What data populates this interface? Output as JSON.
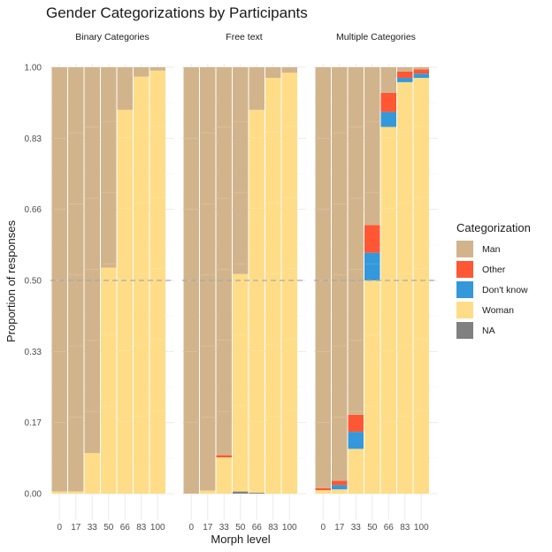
{
  "chart_data": {
    "type": "bar",
    "stacked": true,
    "title": "Gender Categorizations by Participants",
    "xlabel": "Morph level",
    "ylabel": "Proportion of responses",
    "ylim": [
      0,
      1
    ],
    "yticks": [
      "0.00",
      "0.17",
      "0.33",
      "0.50",
      "0.66",
      "0.83",
      "1.00"
    ],
    "ytick_values": [
      0,
      0.1667,
      0.3333,
      0.5,
      0.6667,
      0.8333,
      1.0
    ],
    "reference_line": 0.5,
    "categories": [
      "0",
      "17",
      "33",
      "50",
      "66",
      "83",
      "100"
    ],
    "legend": {
      "title": "Categorization",
      "position": "right",
      "entries": [
        {
          "key": "man",
          "label": "Man",
          "color": "#D2B48C"
        },
        {
          "key": "other",
          "label": "Other",
          "color": "#FF5733"
        },
        {
          "key": "dontknow",
          "label": "Don't know",
          "color": "#3498DB"
        },
        {
          "key": "woman",
          "label": "Woman",
          "color": "#FFDD88"
        },
        {
          "key": "na",
          "label": "NA",
          "color": "#808080"
        }
      ]
    },
    "stack_order_bottom_to_top": [
      "woman",
      "dontknow",
      "other",
      "man"
    ],
    "panels": [
      {
        "name": "Binary Categories",
        "bars": [
          {
            "man": 0.995,
            "other": 0,
            "dontknow": 0,
            "woman": 0.005,
            "na": 0
          },
          {
            "man": 0.995,
            "other": 0,
            "dontknow": 0,
            "woman": 0.005,
            "na": 0
          },
          {
            "man": 0.905,
            "other": 0,
            "dontknow": 0,
            "woman": 0.095,
            "na": 0
          },
          {
            "man": 0.47,
            "other": 0,
            "dontknow": 0,
            "woman": 0.53,
            "na": 0
          },
          {
            "man": 0.1,
            "other": 0,
            "dontknow": 0,
            "woman": 0.9,
            "na": 0
          },
          {
            "man": 0.022,
            "other": 0,
            "dontknow": 0,
            "woman": 0.978,
            "na": 0
          },
          {
            "man": 0.008,
            "other": 0,
            "dontknow": 0,
            "woman": 0.992,
            "na": 0
          }
        ]
      },
      {
        "name": "Free text",
        "bars": [
          {
            "man": 1.0,
            "other": 0,
            "dontknow": 0,
            "woman": 0,
            "na": 0
          },
          {
            "man": 0.993,
            "other": 0,
            "dontknow": 0,
            "woman": 0.007,
            "na": 0
          },
          {
            "man": 0.91,
            "other": 0.005,
            "dontknow": 0,
            "woman": 0.085,
            "na": 0
          },
          {
            "man": 0.485,
            "other": 0,
            "dontknow": 0,
            "woman": 0.51,
            "na": 0.005
          },
          {
            "man": 0.1,
            "other": 0,
            "dontknow": 0,
            "woman": 0.898,
            "na": 0.002
          },
          {
            "man": 0.025,
            "other": 0,
            "dontknow": 0,
            "woman": 0.975,
            "na": 0
          },
          {
            "man": 0.013,
            "other": 0,
            "dontknow": 0,
            "woman": 0.987,
            "na": 0
          }
        ]
      },
      {
        "name": "Multiple Categories",
        "bars": [
          {
            "man": 0.987,
            "other": 0.005,
            "dontknow": 0,
            "woman": 0.008,
            "na": 0
          },
          {
            "man": 0.97,
            "other": 0.01,
            "dontknow": 0.01,
            "woman": 0.01,
            "na": 0
          },
          {
            "man": 0.815,
            "other": 0.04,
            "dontknow": 0.04,
            "woman": 0.105,
            "na": 0
          },
          {
            "man": 0.37,
            "other": 0.065,
            "dontknow": 0.065,
            "woman": 0.5,
            "na": 0
          },
          {
            "man": 0.06,
            "other": 0.045,
            "dontknow": 0.035,
            "woman": 0.86,
            "na": 0
          },
          {
            "man": 0.01,
            "other": 0.015,
            "dontknow": 0.01,
            "woman": 0.965,
            "na": 0
          },
          {
            "man": 0.005,
            "other": 0.01,
            "dontknow": 0.01,
            "woman": 0.975,
            "na": 0
          }
        ]
      }
    ],
    "grid": true
  }
}
